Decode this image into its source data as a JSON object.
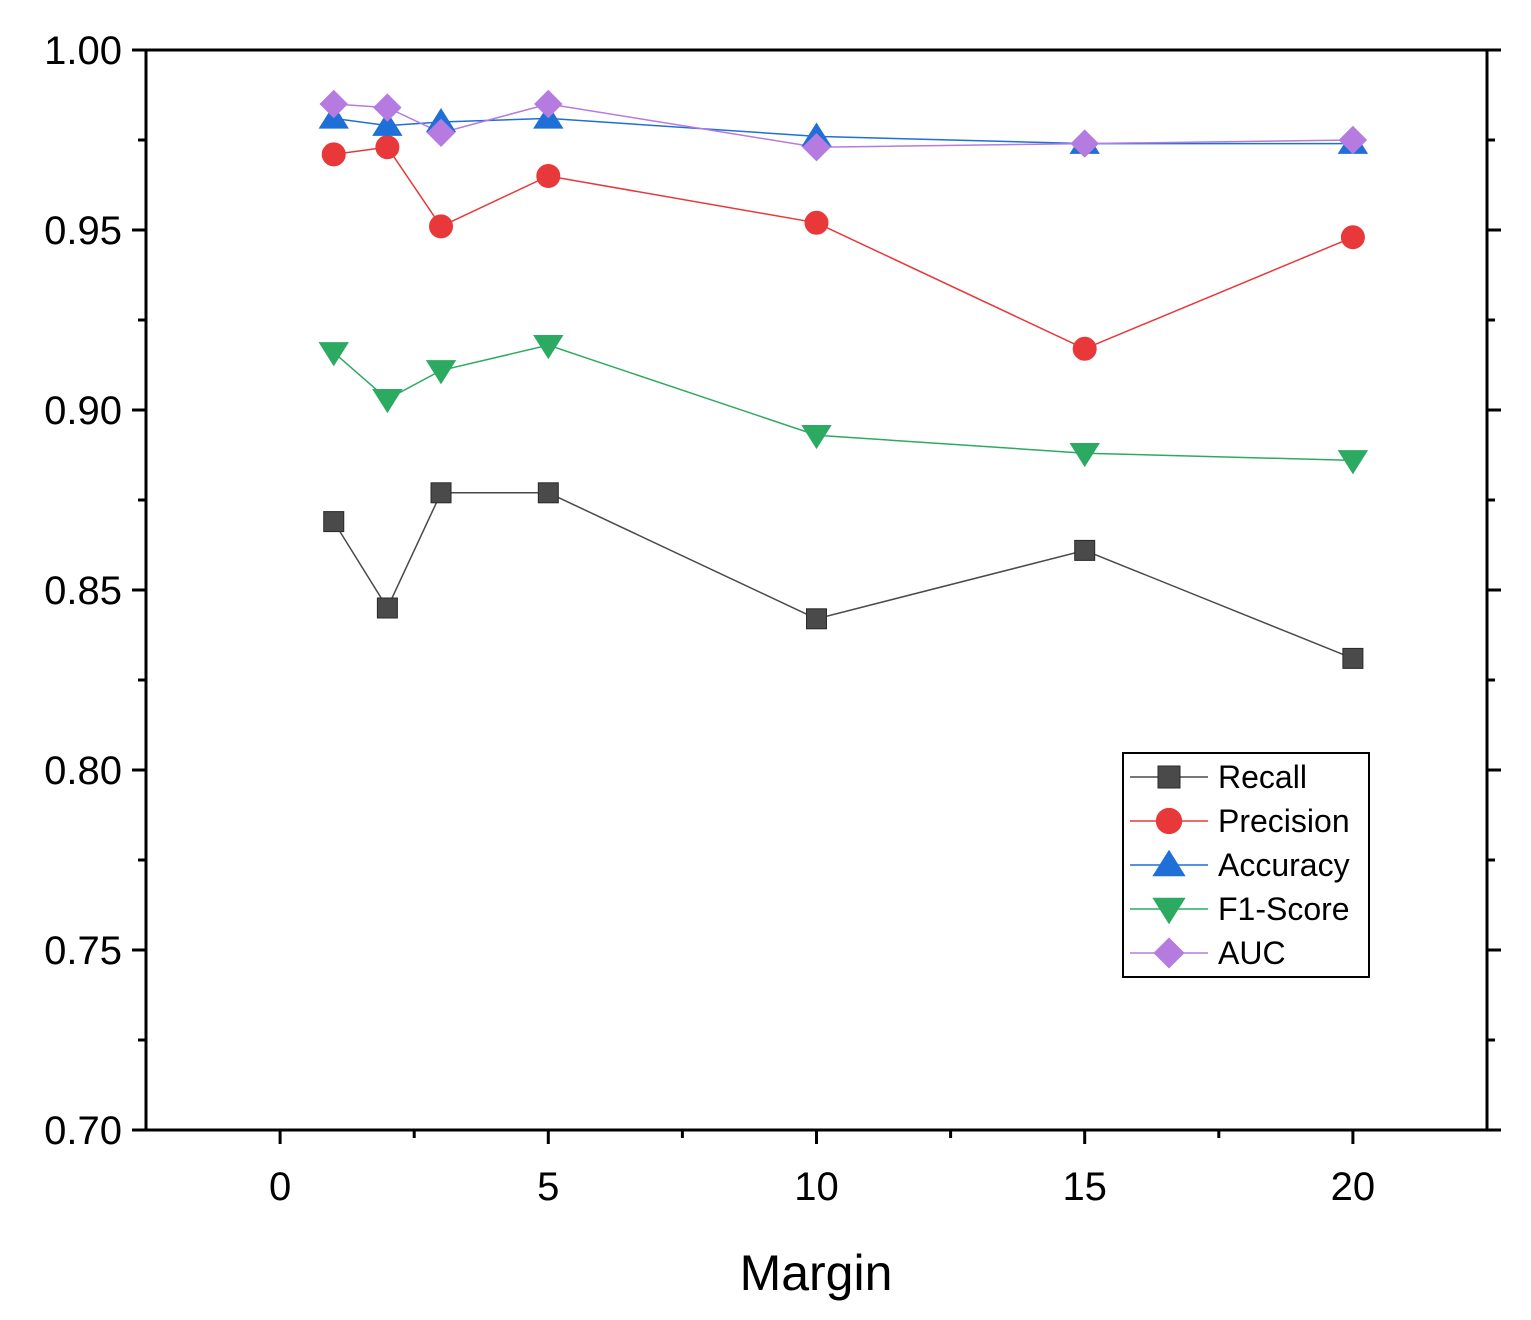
{
  "chart_data": {
    "type": "line",
    "title": "",
    "xlabel": "Margin",
    "ylabel": "",
    "xlim": [
      -2.5,
      22.5
    ],
    "ylim": [
      0.7,
      1.0
    ],
    "x_ticks": [
      0,
      5,
      10,
      15,
      20
    ],
    "x_tick_labels": [
      "0",
      "5",
      "10",
      "15",
      "20"
    ],
    "y_ticks": [
      0.7,
      0.75,
      0.8,
      0.85,
      0.9,
      0.95,
      1.0
    ],
    "y_tick_labels": [
      "0.70",
      "0.75",
      "0.80",
      "0.85",
      "0.90",
      "0.95",
      "1.00"
    ],
    "grid": false,
    "legend_position": "bottom-right",
    "x": [
      1,
      2,
      3,
      5,
      10,
      15,
      20
    ],
    "series": [
      {
        "name": "Recall",
        "color": "#4a4a4a",
        "marker": "square",
        "values": [
          0.869,
          0.845,
          0.877,
          0.877,
          0.842,
          0.861,
          0.831
        ]
      },
      {
        "name": "Precision",
        "color": "#e8383a",
        "marker": "circle",
        "values": [
          0.971,
          0.973,
          0.951,
          0.965,
          0.952,
          0.917,
          0.948
        ]
      },
      {
        "name": "Accuracy",
        "color": "#1f6fd8",
        "marker": "triangle-up",
        "values": [
          0.981,
          0.979,
          0.98,
          0.981,
          0.976,
          0.974,
          0.974
        ]
      },
      {
        "name": "F1-Score",
        "color": "#2daa62",
        "marker": "triangle-down",
        "values": [
          0.916,
          0.903,
          0.911,
          0.918,
          0.893,
          0.888,
          0.886
        ]
      },
      {
        "name": "AUC",
        "color": "#b57be0",
        "marker": "diamond",
        "values": [
          0.985,
          0.984,
          0.977,
          0.985,
          0.973,
          0.974,
          0.975
        ]
      }
    ]
  }
}
